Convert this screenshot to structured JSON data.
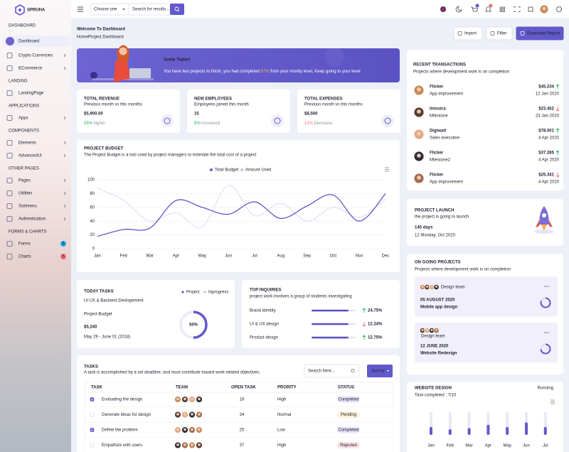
{
  "sidebar": {
    "brand": "SPRUHA",
    "sections": [
      {
        "title": "DASHBOARD",
        "items": [
          {
            "label": "Dashboard",
            "active": true
          },
          {
            "label": "Crypto Currencies",
            "submenu": true
          },
          {
            "label": "ECommerce",
            "submenu": true
          }
        ]
      },
      {
        "title": "LANDING",
        "items": [
          {
            "label": "LandingPage"
          }
        ]
      },
      {
        "title": "APPLICATIONS",
        "items": [
          {
            "label": "Apps",
            "submenu": true
          }
        ]
      },
      {
        "title": "COMPONENTS",
        "items": [
          {
            "label": "Elements",
            "submenu": true
          },
          {
            "label": "AdvancedUI",
            "submenu": true
          }
        ]
      },
      {
        "title": "OTHER PAGES",
        "items": [
          {
            "label": "Pages",
            "submenu": true
          },
          {
            "label": "Utilities",
            "submenu": true
          },
          {
            "label": "Submenu",
            "submenu": true
          },
          {
            "label": "Authentication",
            "submenu": true
          }
        ]
      },
      {
        "title": "FORMS & CHARTS",
        "items": [
          {
            "label": "Forms",
            "badge": "6",
            "badge_color": "#1fa5e8"
          },
          {
            "label": "Charts",
            "badge": "5",
            "badge_color": "#f16d75"
          }
        ]
      }
    ]
  },
  "header": {
    "select_placeholder": "Choose one",
    "search_placeholder": "Search for results..."
  },
  "page": {
    "title": "Welcome To Dashboard",
    "breadcrumb": [
      "Home",
      "Project Dashboard"
    ],
    "buttons": [
      "Import",
      "Filter",
      "Download Report"
    ]
  },
  "welcome": {
    "name": "Sonia Taylor!",
    "text_before": "You have two projects to finish, you had completed ",
    "highlight": "57%",
    "text_after": " from your montly level, Keep going to your level"
  },
  "stats": [
    {
      "title": "TOTAL REVENUE",
      "subtitle": "Previous month vs this months",
      "value": "$5,900.00",
      "change": "55%",
      "change_text": "higher",
      "change_color": "#19b159"
    },
    {
      "title": "NEW EMPLOYEES",
      "subtitle": "Employees joined this month",
      "value": "15",
      "change": "5%",
      "change_text": "increased",
      "change_color": "#19b159"
    },
    {
      "title": "TOTAL EXPENSES",
      "subtitle": "Previous month vs this months",
      "value": "$8,500",
      "change": "12%",
      "change_text": "Decrease",
      "change_color": "#f16d75"
    }
  ],
  "chart_data": [
    {
      "type": "line",
      "title": "PROJECT BUDGET",
      "subtitle": "The Project Budget is a tool used by project managers to estimate the total cost of a project",
      "categories": [
        "Jan",
        "Feb",
        "Mar",
        "Apr",
        "May",
        "Jun",
        "Jul",
        "Aug",
        "Sep",
        "Oct",
        "Nov",
        "Dec"
      ],
      "series": [
        {
          "name": "Total Budget",
          "color": "#6259ca",
          "values": [
            18,
            28,
            30,
            70,
            60,
            50,
            68,
            44,
            62,
            78,
            40,
            80
          ]
        },
        {
          "name": "Amount Used",
          "color": "#c3bfe8",
          "dashed": true,
          "values": [
            88,
            70,
            40,
            52,
            32,
            92,
            48,
            66,
            40,
            60,
            46,
            72
          ]
        }
      ],
      "ylim": [
        0,
        100
      ],
      "yticks": [
        0,
        20,
        40,
        60,
        80,
        100
      ],
      "grid": true,
      "legend": "top"
    },
    {
      "type": "bar",
      "categories": [
        "Jan",
        "Feb",
        "Mar",
        "Apr",
        "May",
        "Jun",
        "Jul"
      ],
      "values": [
        35,
        25,
        30,
        45,
        35,
        55,
        35
      ],
      "color": "#6259ca",
      "ylim": [
        0,
        100
      ]
    }
  ],
  "today_tasks": {
    "title": "TODAY TASKS",
    "subtitle": "UI UX & Backend Devlopement",
    "legend": [
      "Project",
      "Inprogress"
    ],
    "label": "Project-Budget",
    "amount": "$5,240",
    "dates": "May 29 - June 01 (2018)",
    "progress": 50,
    "progress_label": "50%"
  },
  "inquiries": {
    "title": "TOP INQUIRIES",
    "subtitle": "project work involves a group of students investigating",
    "rows": [
      {
        "label": "Brand identity",
        "value": "24.75%",
        "trend": "up"
      },
      {
        "label": "UI & UX design",
        "value": "12.34%",
        "trend": "down"
      },
      {
        "label": "Product design",
        "value": "12.75%",
        "trend": "up"
      }
    ]
  },
  "tasks": {
    "title": "TASKS",
    "subtitle": "A task is accomplished by a set deadline, and must contribute toward work-related objectives.",
    "search_placeholder": "Search here...",
    "sort": "Sort by",
    "columns": [
      "TASK",
      "TEAM",
      "OPEN TASK",
      "PRORITY",
      "STATUS"
    ],
    "rows": [
      {
        "task": "Evaluating the design",
        "open": "18",
        "priority": "High",
        "status": "Completed",
        "checked": true
      },
      {
        "task": "Generate ideas for design",
        "open": "34",
        "priority": "Normal",
        "status": "Pending",
        "checked": false
      },
      {
        "task": "Define the problem",
        "open": "25",
        "priority": "Low",
        "status": "Completed",
        "checked": true
      },
      {
        "task": "Empathize with users",
        "open": "37",
        "priority": "High",
        "status": "Rejected",
        "checked": false
      }
    ]
  },
  "transactions": {
    "title": "RECENT TRANSACTIONS",
    "subtitle": "Projects where development work is on completion",
    "items": [
      {
        "name": "Flicker",
        "desc": "App improvement",
        "amount": "$45.234",
        "date": "12 Jan 2020",
        "trend": "up"
      },
      {
        "name": "Intoxica",
        "desc": "Milestone",
        "amount": "$23.452",
        "date": "23 Jan 2020",
        "trend": "down"
      },
      {
        "name": "Digiwatt",
        "desc": "Sales executive",
        "amount": "$78.001",
        "date": "4 Apr 2020",
        "trend": "up"
      },
      {
        "name": "Flicker",
        "desc": "Milestone2",
        "amount": "$37.285",
        "date": "4 Apr 2020",
        "trend": "up"
      },
      {
        "name": "Flicker",
        "desc": "App improvement",
        "amount": "$25.341",
        "date": "4 Apr 2020",
        "trend": "down"
      }
    ]
  },
  "launch": {
    "title": "PROJECT LAUNCH",
    "subtitle": "the project is going to launch",
    "days": "145 days",
    "date": "12 Monday, Oct 2020"
  },
  "ongoing": {
    "title": "ON GOING PROJECTS",
    "subtitle": "Projects where development work is on completion",
    "projects": [
      {
        "team": "Design team",
        "date": "05 AUGUST 2020",
        "name": "Mobile app design"
      },
      {
        "team": "Design team",
        "date": "12 JUNE 2020",
        "name": "Website Redesign"
      }
    ]
  },
  "website": {
    "title": "WEBSITE DESIGN",
    "status": "Running",
    "completed": "Task completed : 7/10"
  }
}
